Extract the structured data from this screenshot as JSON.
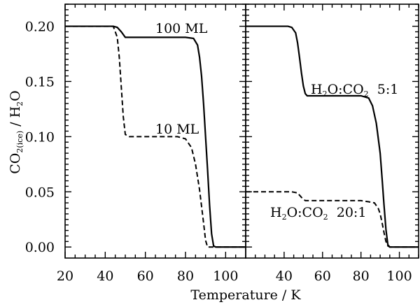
{
  "chart_data": {
    "type": "line",
    "layout": "two panels side by side sharing the y axis",
    "xlabel": "Temperature / K",
    "ylabel": {
      "main": "CO",
      "sub1": "2(ice)",
      "rest": " / H",
      "sub2": "2",
      "end": "O"
    },
    "ylim": [
      -0.01,
      0.22
    ],
    "yticks": [
      "0.00",
      "0.05",
      "0.10",
      "0.15",
      "0.20"
    ],
    "ytick_values": [
      0.0,
      0.05,
      0.1,
      0.15,
      0.2
    ],
    "grid": false,
    "panels": [
      {
        "xlim": [
          20,
          110
        ],
        "xticks": [
          "20",
          "40",
          "60",
          "80",
          "100"
        ],
        "xtick_values": [
          20,
          40,
          60,
          80,
          100
        ],
        "series": [
          {
            "label": "100 ML",
            "style": "solid",
            "points": [
              [
                20,
                0.2
              ],
              [
                44,
                0.2
              ],
              [
                46,
                0.199
              ],
              [
                48,
                0.195
              ],
              [
                50,
                0.19
              ],
              [
                70,
                0.19
              ],
              [
                80,
                0.19
              ],
              [
                84,
                0.189
              ],
              [
                86,
                0.183
              ],
              [
                87,
                0.172
              ],
              [
                88,
                0.155
              ],
              [
                89,
                0.13
              ],
              [
                90,
                0.1
              ],
              [
                91,
                0.07
              ],
              [
                92,
                0.038
              ],
              [
                93,
                0.012
              ],
              [
                94,
                0.001
              ],
              [
                95,
                0.0
              ],
              [
                110,
                0.0
              ]
            ]
          },
          {
            "label": "10 ML",
            "style": "dashed",
            "points": [
              [
                20,
                0.2
              ],
              [
                44,
                0.2
              ],
              [
                46,
                0.19
              ],
              [
                47,
                0.172
              ],
              [
                48,
                0.145
              ],
              [
                49,
                0.118
              ],
              [
                50,
                0.102
              ],
              [
                52,
                0.1
              ],
              [
                60,
                0.1
              ],
              [
                76,
                0.1
              ],
              [
                80,
                0.098
              ],
              [
                83,
                0.09
              ],
              [
                85,
                0.075
              ],
              [
                87,
                0.052
              ],
              [
                89,
                0.022
              ],
              [
                90,
                0.006
              ],
              [
                91,
                0.0
              ],
              [
                110,
                0.0
              ]
            ]
          }
        ],
        "annotations": [
          {
            "text": "100 ML",
            "x": 84,
            "y": 0.205
          },
          {
            "text": "10 ML",
            "x": 76,
            "y": 0.109
          }
        ]
      },
      {
        "xlim": [
          20,
          110
        ],
        "xticks": [
          "40",
          "60",
          "80",
          "100"
        ],
        "xtick_values": [
          40,
          60,
          80,
          100
        ],
        "series": [
          {
            "label": "H2O:CO2 5:1",
            "style": "solid",
            "points": [
              [
                20,
                0.2
              ],
              [
                42,
                0.2
              ],
              [
                44,
                0.199
              ],
              [
                46,
                0.194
              ],
              [
                47,
                0.185
              ],
              [
                48,
                0.172
              ],
              [
                49,
                0.158
              ],
              [
                50,
                0.146
              ],
              [
                51,
                0.139
              ],
              [
                52,
                0.137
              ],
              [
                60,
                0.137
              ],
              [
                80,
                0.137
              ],
              [
                84,
                0.135
              ],
              [
                86,
                0.128
              ],
              [
                88,
                0.112
              ],
              [
                90,
                0.085
              ],
              [
                91,
                0.062
              ],
              [
                92,
                0.038
              ],
              [
                93,
                0.016
              ],
              [
                94,
                0.002
              ],
              [
                95,
                0.0
              ],
              [
                110,
                0.0
              ]
            ]
          },
          {
            "label": "H2O:CO2 20:1",
            "style": "dashed",
            "points": [
              [
                20,
                0.05
              ],
              [
                44,
                0.05
              ],
              [
                47,
                0.049
              ],
              [
                49,
                0.045
              ],
              [
                51,
                0.042
              ],
              [
                53,
                0.042
              ],
              [
                80,
                0.042
              ],
              [
                84,
                0.041
              ],
              [
                87,
                0.04
              ],
              [
                89,
                0.035
              ],
              [
                90,
                0.03
              ],
              [
                91,
                0.022
              ],
              [
                92,
                0.013
              ],
              [
                93,
                0.005
              ],
              [
                94,
                0.001
              ],
              [
                95,
                0.0
              ],
              [
                110,
                0.0
              ]
            ]
          }
        ],
        "annotations": [
          {
            "text": "H2O:CO2  5:1",
            "x": 81,
            "y": 0.15
          },
          {
            "text": "H2O:CO2  20:1",
            "x": 66,
            "y": 0.029
          }
        ]
      }
    ],
    "annotation_labels": {
      "left_solid": "100 ML",
      "left_dashed": "10 ML",
      "right_solid": {
        "a": "H",
        "b": "2",
        "c": "O:CO",
        "d": "2",
        "e": "  5:1"
      },
      "right_dashed": {
        "a": "H",
        "b": "2",
        "c": "O:CO",
        "d": "2",
        "e": "  20:1"
      }
    }
  }
}
